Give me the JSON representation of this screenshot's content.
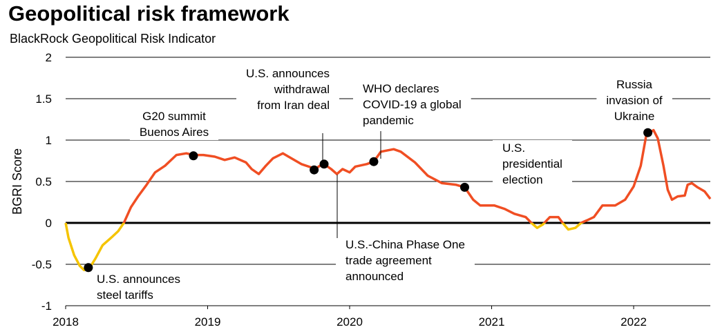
{
  "chart_data": {
    "type": "line",
    "title": "Geopolitical risk framework",
    "subtitle": "BlackRock Geopolitical Risk Indicator",
    "y_label": "BGRI Score",
    "color": "#f04e23",
    "negative_color": "#f5c400",
    "xlim": [
      2018,
      2022.54
    ],
    "ylim": [
      -1,
      2
    ],
    "xticks": [
      2018,
      2019,
      2020,
      2021,
      2022
    ],
    "yticks": [
      -1,
      -0.5,
      0,
      0.5,
      1,
      1.5,
      2
    ],
    "grid": true,
    "x": [
      2018.0,
      2018.02,
      2018.06,
      2018.1,
      2018.13,
      2018.17,
      2018.21,
      2018.26,
      2018.32,
      2018.37,
      2018.41,
      2018.46,
      2018.51,
      2018.57,
      2018.63,
      2018.7,
      2018.78,
      2018.85,
      2018.9,
      2018.97,
      2019.05,
      2019.12,
      2019.19,
      2019.27,
      2019.31,
      2019.36,
      2019.41,
      2019.46,
      2019.53,
      2019.58,
      2019.66,
      2019.73,
      2019.75,
      2019.79,
      2019.82,
      2019.87,
      2019.91,
      2019.95,
      2020.0,
      2020.04,
      2020.12,
      2020.17,
      2020.22,
      2020.31,
      2020.36,
      2020.46,
      2020.55,
      2020.65,
      2020.75,
      2020.81,
      2020.87,
      2020.92,
      2021.02,
      2021.09,
      2021.16,
      2021.24,
      2021.28,
      2021.32,
      2021.36,
      2021.41,
      2021.47,
      2021.5,
      2021.54,
      2021.59,
      2021.63,
      2021.67,
      2021.72,
      2021.78,
      2021.87,
      2021.94,
      2022.0,
      2022.05,
      2022.09,
      2022.14,
      2022.17,
      2022.21,
      2022.24,
      2022.27,
      2022.31,
      2022.36,
      2022.38,
      2022.41,
      2022.45,
      2022.5,
      2022.54
    ],
    "values": [
      0,
      -0.18,
      -0.39,
      -0.52,
      -0.57,
      -0.54,
      -0.43,
      -0.27,
      -0.18,
      -0.1,
      0,
      0.19,
      0.32,
      0.46,
      0.61,
      0.69,
      0.82,
      0.84,
      0.82,
      0.82,
      0.8,
      0.76,
      0.79,
      0.73,
      0.65,
      0.59,
      0.69,
      0.78,
      0.84,
      0.79,
      0.71,
      0.67,
      0.64,
      0.69,
      0.71,
      0.65,
      0.59,
      0.65,
      0.61,
      0.68,
      0.71,
      0.74,
      0.86,
      0.89,
      0.86,
      0.73,
      0.57,
      0.48,
      0.46,
      0.43,
      0.28,
      0.21,
      0.21,
      0.17,
      0.11,
      0.07,
      0,
      -0.06,
      -0.02,
      0.07,
      0.07,
      0,
      -0.08,
      -0.06,
      0,
      0.03,
      0.07,
      0.21,
      0.21,
      0.28,
      0.44,
      0.69,
      1.07,
      1.12,
      1.02,
      0.69,
      0.4,
      0.28,
      0.32,
      0.33,
      0.46,
      0.48,
      0.43,
      0.38,
      0.29
    ],
    "events": [
      {
        "label": [
          "U.S. announces",
          "steel tariffs"
        ],
        "x": 2018.16,
        "y": -0.54
      },
      {
        "label": [
          "G20 summit",
          "Buenos Aires"
        ],
        "x": 2018.9,
        "y": 0.81
      },
      {
        "label": [
          "U.S.-China Phase One",
          "trade agreement",
          "announced"
        ],
        "x": 2019.75,
        "y": 0.64
      },
      {
        "label": [
          "U.S. announces",
          "withdrawal",
          "from Iran deal"
        ],
        "x": 2019.82,
        "y": 0.71
      },
      {
        "label": [
          "WHO declares",
          "COVID-19 a global",
          "pandemic"
        ],
        "x": 2020.17,
        "y": 0.74
      },
      {
        "label": [
          "U.S.",
          "presidential",
          "election"
        ],
        "x": 2020.81,
        "y": 0.43
      },
      {
        "label": [
          "Russia",
          "invasion of",
          "Ukraine"
        ],
        "x": 2022.1,
        "y": 1.09
      }
    ]
  }
}
